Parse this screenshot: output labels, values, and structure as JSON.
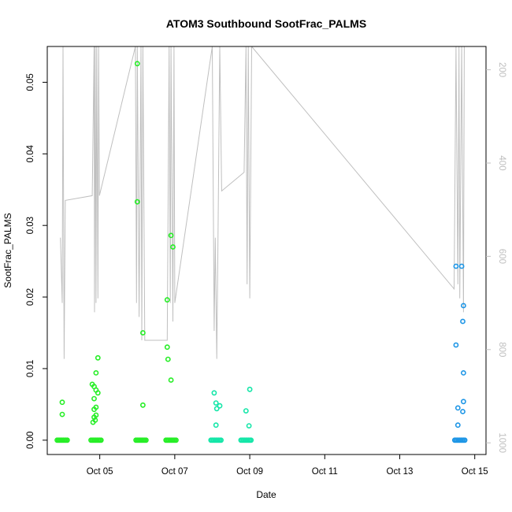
{
  "chart_data": {
    "type": "scatter",
    "title": "ATOM3 Southbound SootFrac_PALMS",
    "xlabel": "Date",
    "ylabel": "SootFrac_PALMS",
    "x_ticks": [
      "Oct 05",
      "Oct 07",
      "Oct 09",
      "Oct 11",
      "Oct 13",
      "Oct 15"
    ],
    "x_tick_days": [
      5,
      7,
      9,
      11,
      13,
      15
    ],
    "xlim_days": [
      3.6,
      15.3
    ],
    "y_ticks": [
      "0.00",
      "0.01",
      "0.02",
      "0.03",
      "0.04",
      "0.05"
    ],
    "y_tick_values": [
      0,
      0.01,
      0.02,
      0.03,
      0.04,
      0.05
    ],
    "ylim": [
      -0.002,
      0.055
    ],
    "right_axis": {
      "description": "pressure altitude profile (inverted)",
      "ticks": [
        "200",
        "400",
        "600",
        "800",
        "1000"
      ],
      "tick_values": [
        200,
        400,
        600,
        800,
        1000
      ],
      "lim": [
        150,
        1025
      ],
      "inverted": true,
      "color": "#bfbfbf"
    },
    "grid": false,
    "series": [
      {
        "values": [
          {
            "x": 4.0,
            "y": 0.0053
          },
          {
            "x": 4.0,
            "y": 0.0036
          },
          {
            "x": 4.0,
            "y": 0.0
          },
          {
            "x": 4.8,
            "y": 0.0078
          },
          {
            "x": 4.85,
            "y": 0.0075
          },
          {
            "x": 4.9,
            "y": 0.0094
          },
          {
            "x": 4.95,
            "y": 0.0115
          },
          {
            "x": 4.9,
            "y": 0.007
          },
          {
            "x": 4.95,
            "y": 0.0066
          },
          {
            "x": 4.85,
            "y": 0.0058
          },
          {
            "x": 4.9,
            "y": 0.0046
          },
          {
            "x": 4.85,
            "y": 0.0043
          },
          {
            "x": 4.9,
            "y": 0.0035
          },
          {
            "x": 4.85,
            "y": 0.0032
          },
          {
            "x": 4.88,
            "y": 0.0028
          },
          {
            "x": 4.82,
            "y": 0.0025
          },
          {
            "x": 4.9,
            "y": 0.0
          },
          {
            "x": 6.0,
            "y": 0.0526
          },
          {
            "x": 6.0,
            "y": 0.0333
          },
          {
            "x": 6.15,
            "y": 0.015
          },
          {
            "x": 6.15,
            "y": 0.0049
          },
          {
            "x": 6.1,
            "y": 0.0
          },
          {
            "x": 6.8,
            "y": 0.0196
          },
          {
            "x": 6.9,
            "y": 0.0286
          },
          {
            "x": 6.95,
            "y": 0.027
          },
          {
            "x": 6.8,
            "y": 0.013
          },
          {
            "x": 6.82,
            "y": 0.0113
          },
          {
            "x": 6.9,
            "y": 0.0084
          },
          {
            "x": 6.9,
            "y": 0.0
          }
        ],
        "color": "#26ee26"
      },
      {
        "values": [
          {
            "x": 8.05,
            "y": 0.0066
          },
          {
            "x": 8.1,
            "y": 0.0052
          },
          {
            "x": 8.2,
            "y": 0.0048
          },
          {
            "x": 8.12,
            "y": 0.0044
          },
          {
            "x": 8.1,
            "y": 0.0021
          },
          {
            "x": 8.1,
            "y": 0.0
          },
          {
            "x": 8.9,
            "y": 0.0041
          },
          {
            "x": 9.0,
            "y": 0.0071
          },
          {
            "x": 8.98,
            "y": 0.002
          },
          {
            "x": 8.9,
            "y": 0.0
          }
        ],
        "color": "#14e6a8"
      },
      {
        "values": [
          {
            "x": 14.5,
            "y": 0.0243
          },
          {
            "x": 14.65,
            "y": 0.0243
          },
          {
            "x": 14.7,
            "y": 0.0188
          },
          {
            "x": 14.68,
            "y": 0.0166
          },
          {
            "x": 14.5,
            "y": 0.0133
          },
          {
            "x": 14.7,
            "y": 0.0094
          },
          {
            "x": 14.7,
            "y": 0.0054
          },
          {
            "x": 14.55,
            "y": 0.0045
          },
          {
            "x": 14.68,
            "y": 0.004
          },
          {
            "x": 14.55,
            "y": 0.0021
          },
          {
            "x": 14.6,
            "y": 0.0
          }
        ],
        "color": "#1e96e6"
      }
    ]
  }
}
